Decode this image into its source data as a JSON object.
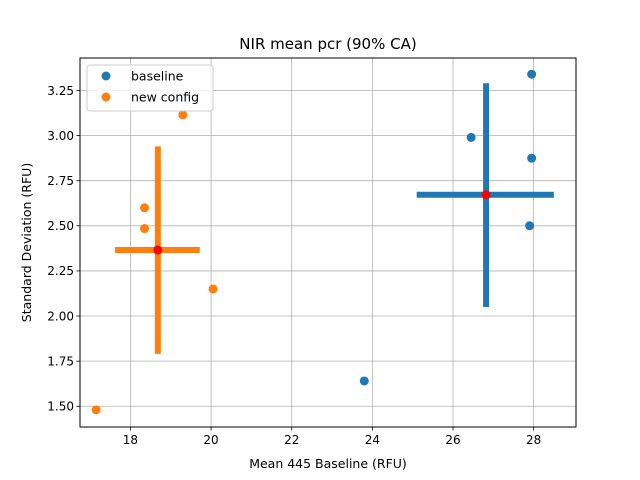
{
  "chart_data": {
    "type": "scatter",
    "title": "NIR mean pcr (90% CA)",
    "xlabel": "Mean 445 Baseline (RFU)",
    "ylabel": "Standard Deviation (RFU)",
    "xlim": [
      16.75,
      29.05
    ],
    "ylim": [
      1.385,
      3.43
    ],
    "xticks": [
      18,
      20,
      22,
      24,
      26,
      28
    ],
    "yticks": [
      1.5,
      1.75,
      2.0,
      2.25,
      2.5,
      2.75,
      3.0,
      3.25
    ],
    "xtick_labels": [
      "18",
      "20",
      "22",
      "24",
      "26",
      "28"
    ],
    "ytick_labels": [
      "1.50",
      "1.75",
      "2.00",
      "2.25",
      "2.50",
      "2.75",
      "3.00",
      "3.25"
    ],
    "grid": true,
    "legend_position": "top-left",
    "series": [
      {
        "name": "baseline",
        "color": "#1f77b4",
        "points": [
          {
            "x": 27.95,
            "y": 3.34
          },
          {
            "x": 26.45,
            "y": 2.99
          },
          {
            "x": 27.95,
            "y": 2.875
          },
          {
            "x": 27.9,
            "y": 2.5
          },
          {
            "x": 23.8,
            "y": 1.64
          }
        ],
        "center": {
          "x": 26.82,
          "y": 2.672
        },
        "x_interval": [
          25.1,
          28.5
        ],
        "y_interval": [
          2.05,
          3.29
        ]
      },
      {
        "name": "new config",
        "color": "#ff7f0e",
        "points": [
          {
            "x": 19.3,
            "y": 3.115
          },
          {
            "x": 18.35,
            "y": 2.6
          },
          {
            "x": 18.35,
            "y": 2.485
          },
          {
            "x": 20.05,
            "y": 2.15
          },
          {
            "x": 17.15,
            "y": 1.48
          }
        ],
        "center": {
          "x": 18.68,
          "y": 2.366
        },
        "x_interval": [
          17.62,
          19.72
        ],
        "y_interval": [
          1.79,
          2.94
        ]
      }
    ],
    "center_marker_color": "#ff0000"
  }
}
